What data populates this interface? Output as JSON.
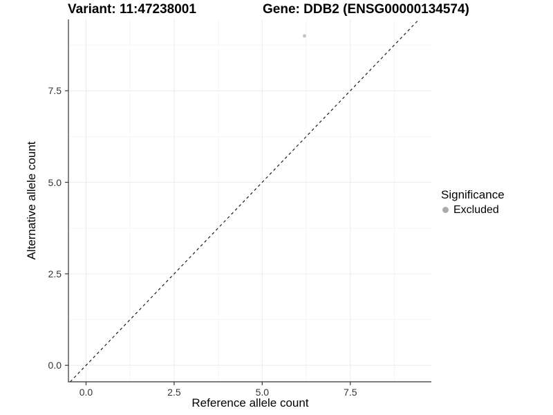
{
  "titles": {
    "variant": "Variant: 11:47238001",
    "gene": "Gene: DDB2 (ENSG00000134574)"
  },
  "axes": {
    "x": {
      "label": "Reference allele count",
      "tick_labels": [
        "0.0",
        "2.5",
        "5.0",
        "7.5"
      ]
    },
    "y": {
      "label": "Alternative allele count",
      "tick_labels": [
        "0.0",
        "2.5",
        "5.0",
        "7.5"
      ]
    }
  },
  "legend": {
    "title": "Significance",
    "items": [
      {
        "label": "Excluded",
        "color": "#ababab"
      }
    ]
  },
  "style": {
    "background": "#ffffff",
    "grid_major": "#ebebeb",
    "grid_minor": "#f5f5f5",
    "axis_line": "#333333",
    "tick_mark": "#333333",
    "ref_line": "#1a1a1a"
  },
  "chart_data": {
    "type": "scatter",
    "title": "Variant: 11:47238001 — Gene: DDB2 (ENSG00000134574)",
    "xlabel": "Reference allele count",
    "ylabel": "Alternative allele count",
    "xlim": [
      -0.5,
      9.8
    ],
    "ylim": [
      -0.45,
      9.45
    ],
    "x_ticks": [
      0,
      2.5,
      5,
      7.5
    ],
    "y_ticks": [
      0,
      2.5,
      5,
      7.5
    ],
    "x_minor_ticks": [
      1.25,
      3.75,
      6.25,
      8.75
    ],
    "y_minor_ticks": [
      1.25,
      3.75,
      6.25,
      8.75
    ],
    "grid": "major and minor gridlines, light gray on white",
    "legend_position": "right",
    "reference_line": {
      "style": "dashed",
      "equation": "y = x",
      "color": "#1a1a1a"
    },
    "series": [
      {
        "name": "Excluded",
        "color": "#c4c4c4",
        "marker": "circle",
        "point_radius": 2.5,
        "points": [
          {
            "x": 6.2,
            "y": 9.0
          }
        ]
      }
    ]
  }
}
